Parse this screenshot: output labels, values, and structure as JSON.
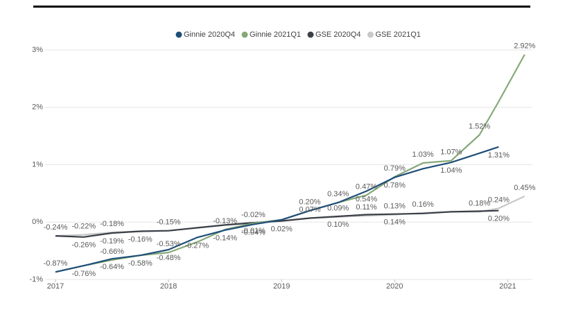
{
  "chart_data": {
    "type": "line",
    "x": [
      2017,
      2017.25,
      2017.5,
      2017.75,
      2018,
      2018.25,
      2018.5,
      2018.75,
      2019,
      2019.25,
      2019.5,
      2019.75,
      2020,
      2020.25,
      2020.5,
      2020.75,
      2020.92,
      2021.15
    ],
    "series": [
      {
        "name": "Ginnie 2020Q4",
        "color": "#1f4e79",
        "values": [
          -0.87,
          -0.76,
          -0.64,
          -0.58,
          -0.48,
          -0.27,
          -0.14,
          -0.04,
          0.04,
          0.2,
          0.34,
          0.54,
          0.78,
          0.93,
          1.04,
          1.2,
          1.31,
          null
        ],
        "value_labels": [
          null,
          "-0.76%",
          "-0.64%",
          "-0.58%",
          "-0.48%",
          "-0.27%",
          "-0.14%",
          "-0.04%",
          null,
          null,
          null,
          "0.54%",
          "0.78%",
          null,
          "1.04%",
          null,
          "1.31%",
          null
        ]
      },
      {
        "name": "Ginnie 2021Q1",
        "color": "#86a877",
        "values": [
          -0.87,
          -0.76,
          -0.66,
          -0.58,
          -0.53,
          -0.35,
          -0.13,
          -0.02,
          0.04,
          0.2,
          0.34,
          0.47,
          0.79,
          1.03,
          1.07,
          1.52,
          2.1,
          2.92
        ],
        "value_labels": [
          "-0.87%",
          null,
          "-0.66%",
          null,
          "-0.53%",
          null,
          "-0.13%",
          "-0.02%",
          null,
          "0.20%",
          "0.34%",
          "0.47%",
          "0.79%",
          "1.03%",
          "1.07%",
          "1.52%",
          null,
          "2.92%"
        ]
      },
      {
        "name": "GSE 2020Q4",
        "color": "#3b3f48",
        "values": [
          -0.24,
          -0.26,
          -0.19,
          -0.16,
          -0.15,
          -0.1,
          -0.05,
          -0.01,
          0.02,
          0.07,
          0.1,
          0.13,
          0.14,
          0.15,
          0.18,
          0.19,
          0.2,
          null
        ],
        "value_labels": [
          null,
          "-0.26%",
          "-0.19%",
          "-0.16%",
          null,
          null,
          null,
          "-0.01%",
          "0.02%",
          null,
          "0.10%",
          null,
          "0.14%",
          null,
          null,
          null,
          "0.20%",
          null
        ]
      },
      {
        "name": "GSE 2021Q1",
        "color": "#c8c8c8",
        "values": [
          -0.24,
          -0.22,
          -0.18,
          -0.16,
          -0.15,
          -0.1,
          -0.05,
          -0.02,
          0.02,
          0.07,
          0.09,
          0.11,
          0.13,
          0.16,
          0.18,
          0.18,
          0.24,
          0.45
        ],
        "value_labels": [
          "-0.24%",
          "-0.22%",
          "-0.18%",
          null,
          "-0.15%",
          null,
          null,
          null,
          null,
          "0.07%",
          "0.09%",
          "0.11%",
          "0.13%",
          "0.16%",
          null,
          "0.18%",
          "0.24%",
          "0.45%"
        ]
      }
    ],
    "xlim": [
      2017,
      2021.2
    ],
    "xticks": [
      2017,
      2018,
      2019,
      2020,
      2021
    ],
    "ylim": [
      -1,
      3
    ],
    "yticks": [
      {
        "value": -1,
        "label": "-1%"
      },
      {
        "value": 0,
        "label": "0%"
      },
      {
        "value": 1,
        "label": "1%"
      },
      {
        "value": 2,
        "label": "2%"
      },
      {
        "value": 3,
        "label": "3%"
      }
    ],
    "grid": true,
    "legend": "top"
  }
}
